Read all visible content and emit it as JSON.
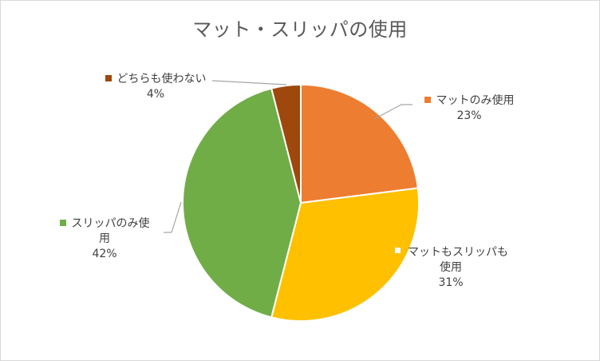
{
  "chart_data": {
    "type": "pie",
    "title": "マット・スリッパの使用",
    "slices": [
      {
        "label": "マットのみ使用",
        "label_lines": [
          "マットのみ使用"
        ],
        "value": 23,
        "value_label": "23%",
        "color": "#ed7d31"
      },
      {
        "label": "マットもスリッパも使用",
        "label_lines": [
          "マットもスリッパも",
          "使用"
        ],
        "value": 31,
        "value_label": "31%",
        "color": "#ffc000"
      },
      {
        "label": "スリッパのみ使用",
        "label_lines": [
          "スリッパのみ使",
          "用"
        ],
        "value": 42,
        "value_label": "42%",
        "color": "#70ad47"
      },
      {
        "label": "どちらも使わない",
        "label_lines": [
          "どちらも使わない"
        ],
        "value": 4,
        "value_label": "4%",
        "color": "#9e480e"
      }
    ],
    "start_angle": "12 o'clock",
    "direction": "clockwise",
    "legend": "none",
    "data_labels": "category name and percentage, outside with leader lines"
  }
}
